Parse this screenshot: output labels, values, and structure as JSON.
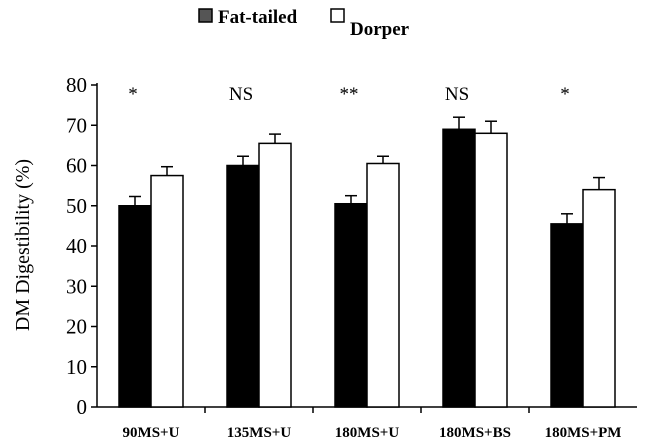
{
  "chart_data": {
    "type": "bar",
    "categories": [
      "90MS+U",
      "135MS+U",
      "180MS+U",
      "180MS+BS",
      "180MS+PM"
    ],
    "series": [
      {
        "name": "Fat-tailed",
        "values": [
          50,
          60,
          50.5,
          69,
          45.5
        ],
        "errors": [
          2.3,
          2.3,
          2.0,
          3.0,
          2.5
        ],
        "color": "#000000"
      },
      {
        "name": "Dorper",
        "values": [
          57.5,
          65.5,
          60.5,
          68,
          54
        ],
        "errors": [
          2.2,
          2.3,
          1.8,
          3.0,
          3.0
        ],
        "color": "#ffffff"
      }
    ],
    "significance": [
      "*",
      "NS",
      "**",
      "NS",
      "*"
    ],
    "ylabel": "DM Digestibility (%)",
    "xlabel": "",
    "ylim": [
      0,
      80
    ],
    "yticks": [
      0,
      10,
      20,
      30,
      40,
      50,
      60,
      70,
      80
    ],
    "grid": false,
    "legend_position": "top-center"
  }
}
